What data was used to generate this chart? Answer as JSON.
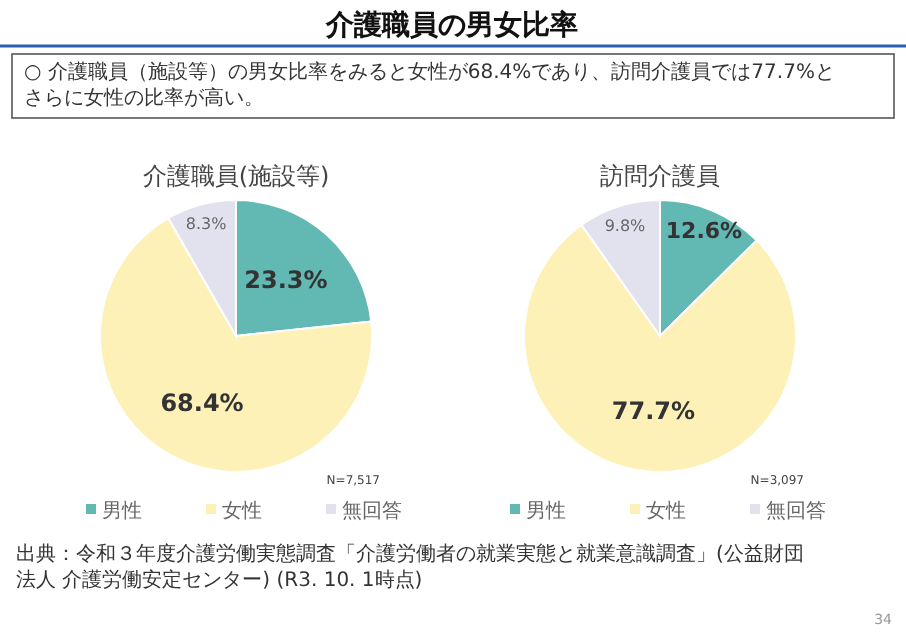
{
  "chart_data": [
    {
      "type": "pie",
      "title": "介護職員(施設等)",
      "categories": [
        "男性",
        "女性",
        "無回答"
      ],
      "values": [
        23.3,
        68.4,
        8.3
      ],
      "value_labels": [
        "23.3%",
        "68.4%",
        "8.3%"
      ],
      "colors": [
        "#62b8b2",
        "#fdf1b8",
        "#e2e1ee"
      ],
      "legend": "bottom",
      "annotations": [
        "N=7,517",
        "介護職員の男女比率",
        "○ 介護職員（施設等）の男女比率をみると女性が68.4%であり、訪問介護員では77.7%とさらに女性の比率が高い。",
        "出典：令和３年度介護労働実態調査「介護労働者の就業実態と就業意識調査」(公益財団法人 介護労働安定センター) (R3. 10. 1時点)",
        "34"
      ]
    },
    {
      "type": "pie",
      "title": "訪問介護員",
      "categories": [
        "男性",
        "女性",
        "無回答"
      ],
      "values": [
        12.6,
        77.7,
        9.8
      ],
      "value_labels": [
        "12.6%",
        "77.7%",
        "9.8%"
      ],
      "colors": [
        "#62b8b2",
        "#fdf1b8",
        "#e2e1ee"
      ],
      "legend": "bottom",
      "annotations": [
        "N=3,097"
      ]
    }
  ]
}
